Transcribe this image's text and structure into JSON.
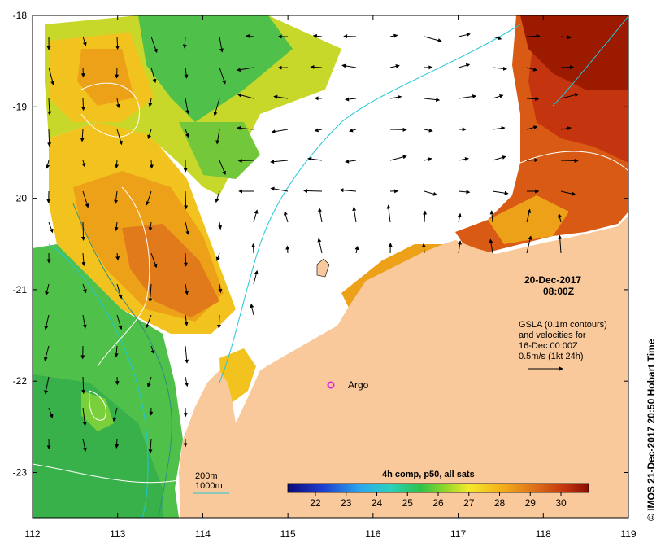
{
  "map": {
    "date": "20-Dec-2017",
    "time": "08:00Z",
    "legend_lines": [
      "GSLA (0.1m contours)",
      "and velocities for",
      "16-Dec 00:00Z",
      "0.5m/s (1kt 24h)"
    ],
    "argo_label": "Argo",
    "depth_legend": [
      "200m",
      "1000m"
    ],
    "colorbar_title": "4h comp, p50, all sats",
    "colorbar_ticks": [
      "22",
      "23",
      "24",
      "25",
      "26",
      "27",
      "28",
      "29",
      "30"
    ],
    "credit": "© IMOS 21-Dec-2017 20:50 Hobart Time",
    "x_ticks": [
      "112",
      "113",
      "114",
      "115",
      "116",
      "117",
      "118",
      "119"
    ],
    "y_ticks": [
      "-18",
      "-19",
      "-20",
      "-21",
      "-22",
      "-23"
    ],
    "colors": {
      "land": "#f9c89b",
      "contour_200m": "#2f8f7f",
      "contour_1000m": "#22c7d6",
      "argo": "#e020e0",
      "sst_warm": "#9b1a00",
      "sst_cool": "#1ea44a"
    }
  }
}
